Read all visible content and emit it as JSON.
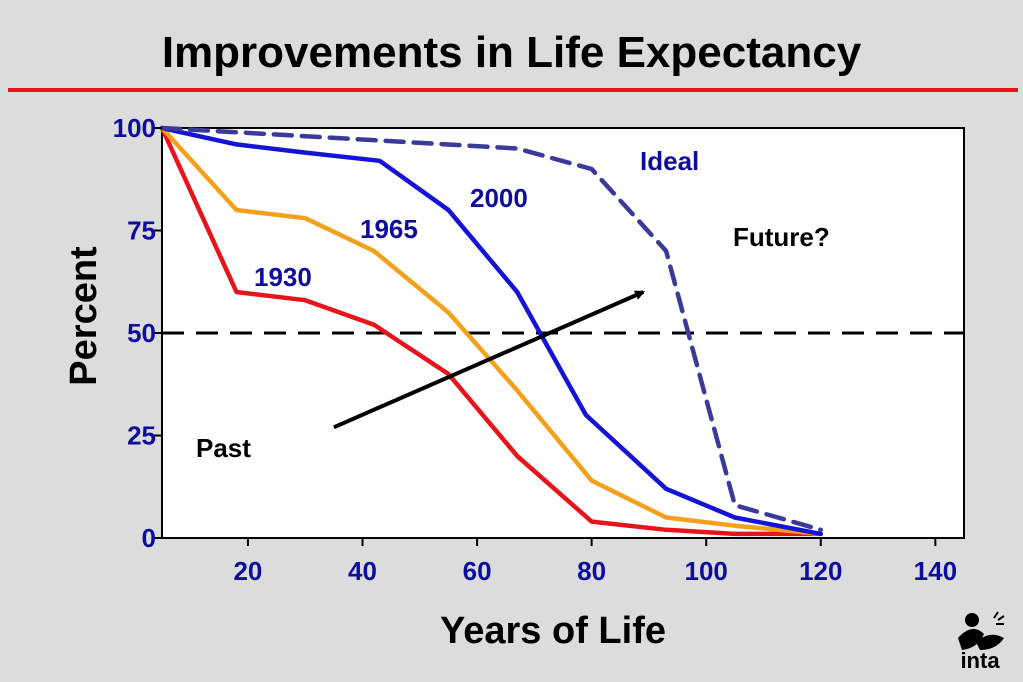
{
  "title": "Improvements in Life Expectancy",
  "logo": {
    "text": "inta",
    "icon": "inta-logo-icon"
  },
  "chart_data": {
    "type": "line",
    "xlabel": "Years of Life",
    "ylabel": "Percent",
    "xlim": [
      5,
      145
    ],
    "ylim": [
      0,
      100
    ],
    "xticks": [
      20,
      40,
      60,
      80,
      100,
      120,
      140
    ],
    "yticks": [
      0,
      25,
      50,
      75,
      100
    ],
    "grid": false,
    "reference_line": {
      "y": 50,
      "style": "dashed",
      "color": "#000000"
    },
    "series": [
      {
        "name": "1930",
        "color": "#e8141c",
        "dashed": false,
        "x": [
          5,
          18,
          30,
          42,
          55,
          67,
          80,
          93,
          105,
          120
        ],
        "y": [
          100,
          60,
          58,
          52,
          40,
          20,
          4,
          2,
          1,
          1
        ]
      },
      {
        "name": "1965",
        "color": "#f5a01a",
        "dashed": false,
        "x": [
          5,
          18,
          30,
          42,
          55,
          67,
          80,
          93,
          105,
          120
        ],
        "y": [
          100,
          80,
          78,
          70,
          55,
          36,
          14,
          5,
          3,
          1
        ]
      },
      {
        "name": "2000",
        "color": "#1414d8",
        "dashed": false,
        "x": [
          5,
          18,
          30,
          43,
          55,
          67,
          79,
          93,
          105,
          120
        ],
        "y": [
          100,
          96,
          94,
          92,
          80,
          60,
          30,
          12,
          5,
          1
        ]
      },
      {
        "name": "Ideal",
        "color": "#3a3a9a",
        "dashed": true,
        "x": [
          5,
          30,
          67,
          80,
          93,
          105,
          120
        ],
        "y": [
          100,
          98,
          95,
          90,
          70,
          8,
          2
        ]
      }
    ],
    "annotations": [
      {
        "text": "Future?",
        "x": 103,
        "y": 74
      },
      {
        "text": "Past",
        "x": 12,
        "y": 22
      }
    ],
    "arrow": {
      "from": [
        35,
        27
      ],
      "to": [
        89,
        60
      ],
      "color": "#000000"
    }
  }
}
